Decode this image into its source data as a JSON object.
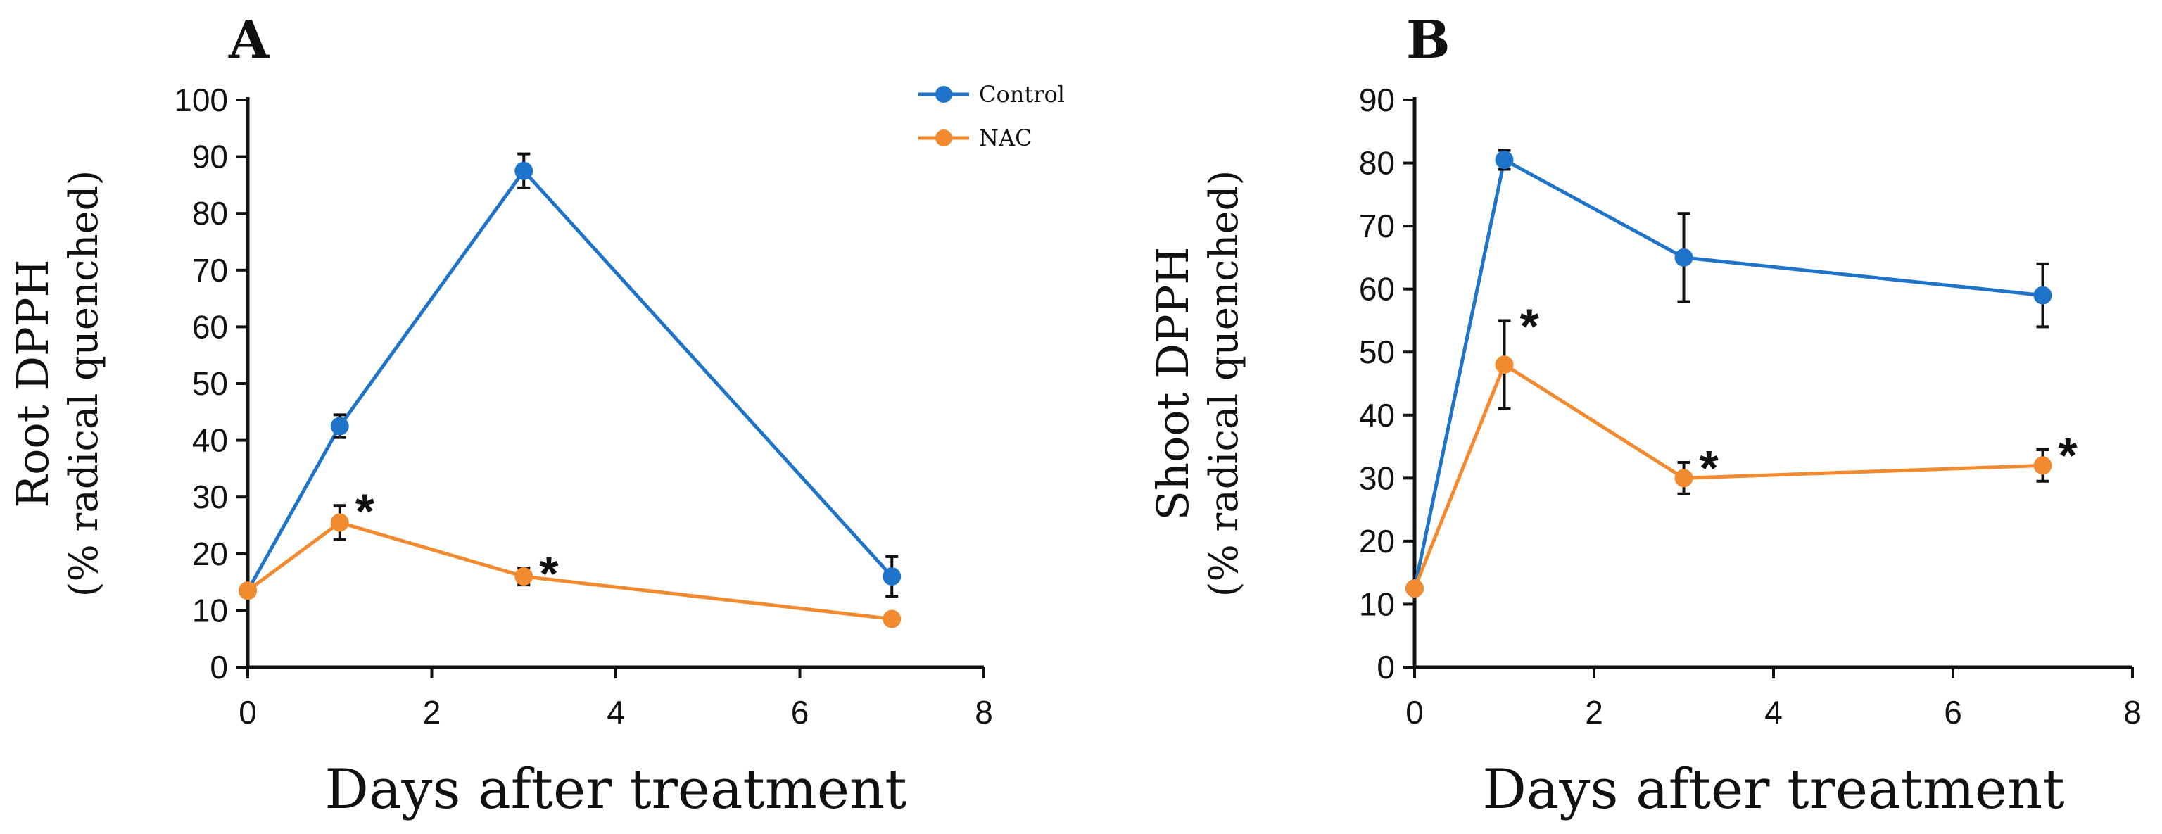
{
  "chart_data": [
    {
      "type": "line",
      "panel_label": "A",
      "title": "",
      "xlabel": "Days after treatment",
      "ylabel_line1": "Root DPPH",
      "ylabel_line2": "(% radical quenched)",
      "xlim": [
        0,
        8
      ],
      "ylim": [
        0,
        100
      ],
      "xticks": [
        0,
        2,
        4,
        6,
        8
      ],
      "yticks": [
        0,
        10,
        20,
        30,
        40,
        50,
        60,
        70,
        80,
        90,
        100
      ],
      "grid": false,
      "legend": {
        "placement": "top-right",
        "entries": [
          {
            "label": "Control",
            "color": "#1f73c9"
          },
          {
            "label": "NAC",
            "color": "#f28a30"
          }
        ]
      },
      "series": [
        {
          "name": "Control",
          "color": "#1f73c9",
          "x": [
            0,
            1,
            3,
            7
          ],
          "y": [
            13.5,
            42.5,
            87.5,
            16
          ],
          "err": [
            0,
            2,
            3,
            3.5
          ],
          "significant": [
            false,
            false,
            false,
            false
          ]
        },
        {
          "name": "NAC",
          "color": "#f28a30",
          "x": [
            0,
            1,
            3,
            7
          ],
          "y": [
            13.5,
            25.5,
            16,
            8.5
          ],
          "err": [
            0,
            3,
            1.5,
            0
          ],
          "significant": [
            false,
            true,
            true,
            false
          ]
        }
      ],
      "significance_marker": "*"
    },
    {
      "type": "line",
      "panel_label": "B",
      "title": "",
      "xlabel": "Days after treatment",
      "ylabel_line1": "Shoot DPPH",
      "ylabel_line2": "(% radical quenched)",
      "xlim": [
        0,
        8
      ],
      "ylim": [
        0,
        90
      ],
      "xticks": [
        0,
        2,
        4,
        6,
        8
      ],
      "yticks": [
        0,
        10,
        20,
        30,
        40,
        50,
        60,
        70,
        80,
        90
      ],
      "grid": false,
      "series": [
        {
          "name": "Control",
          "color": "#1f73c9",
          "x": [
            0,
            1,
            3,
            7
          ],
          "y": [
            12.5,
            80.5,
            65,
            59
          ],
          "err": [
            0,
            1.5,
            7,
            5
          ],
          "significant": [
            false,
            false,
            false,
            false
          ]
        },
        {
          "name": "NAC",
          "color": "#f28a30",
          "x": [
            0,
            1,
            3,
            7
          ],
          "y": [
            12.5,
            48,
            30,
            32
          ],
          "err": [
            0,
            7,
            2.5,
            2.5
          ],
          "significant": [
            false,
            true,
            true,
            true
          ]
        }
      ],
      "significance_marker": "*"
    }
  ]
}
